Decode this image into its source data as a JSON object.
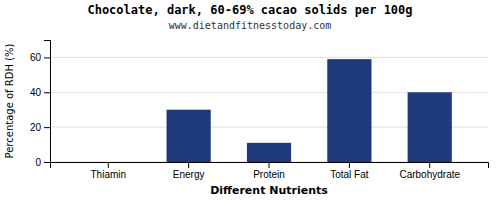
{
  "chart_data": {
    "type": "bar",
    "title": "Chocolate, dark, 60-69% cacao solids per 100g",
    "subtitle": "www.dietandfitnesstoday.com",
    "xlabel": "Different Nutrients",
    "ylabel": "Percentage of RDH (%)",
    "categories": [
      "Thiamin",
      "Energy",
      "Protein",
      "Total Fat",
      "Carbohydrate"
    ],
    "values": [
      0,
      30,
      11,
      59,
      40
    ],
    "color": "#1f3a7a",
    "ylim": [
      0,
      70
    ],
    "yticks": [
      0,
      20,
      40,
      60
    ],
    "grid": true
  }
}
